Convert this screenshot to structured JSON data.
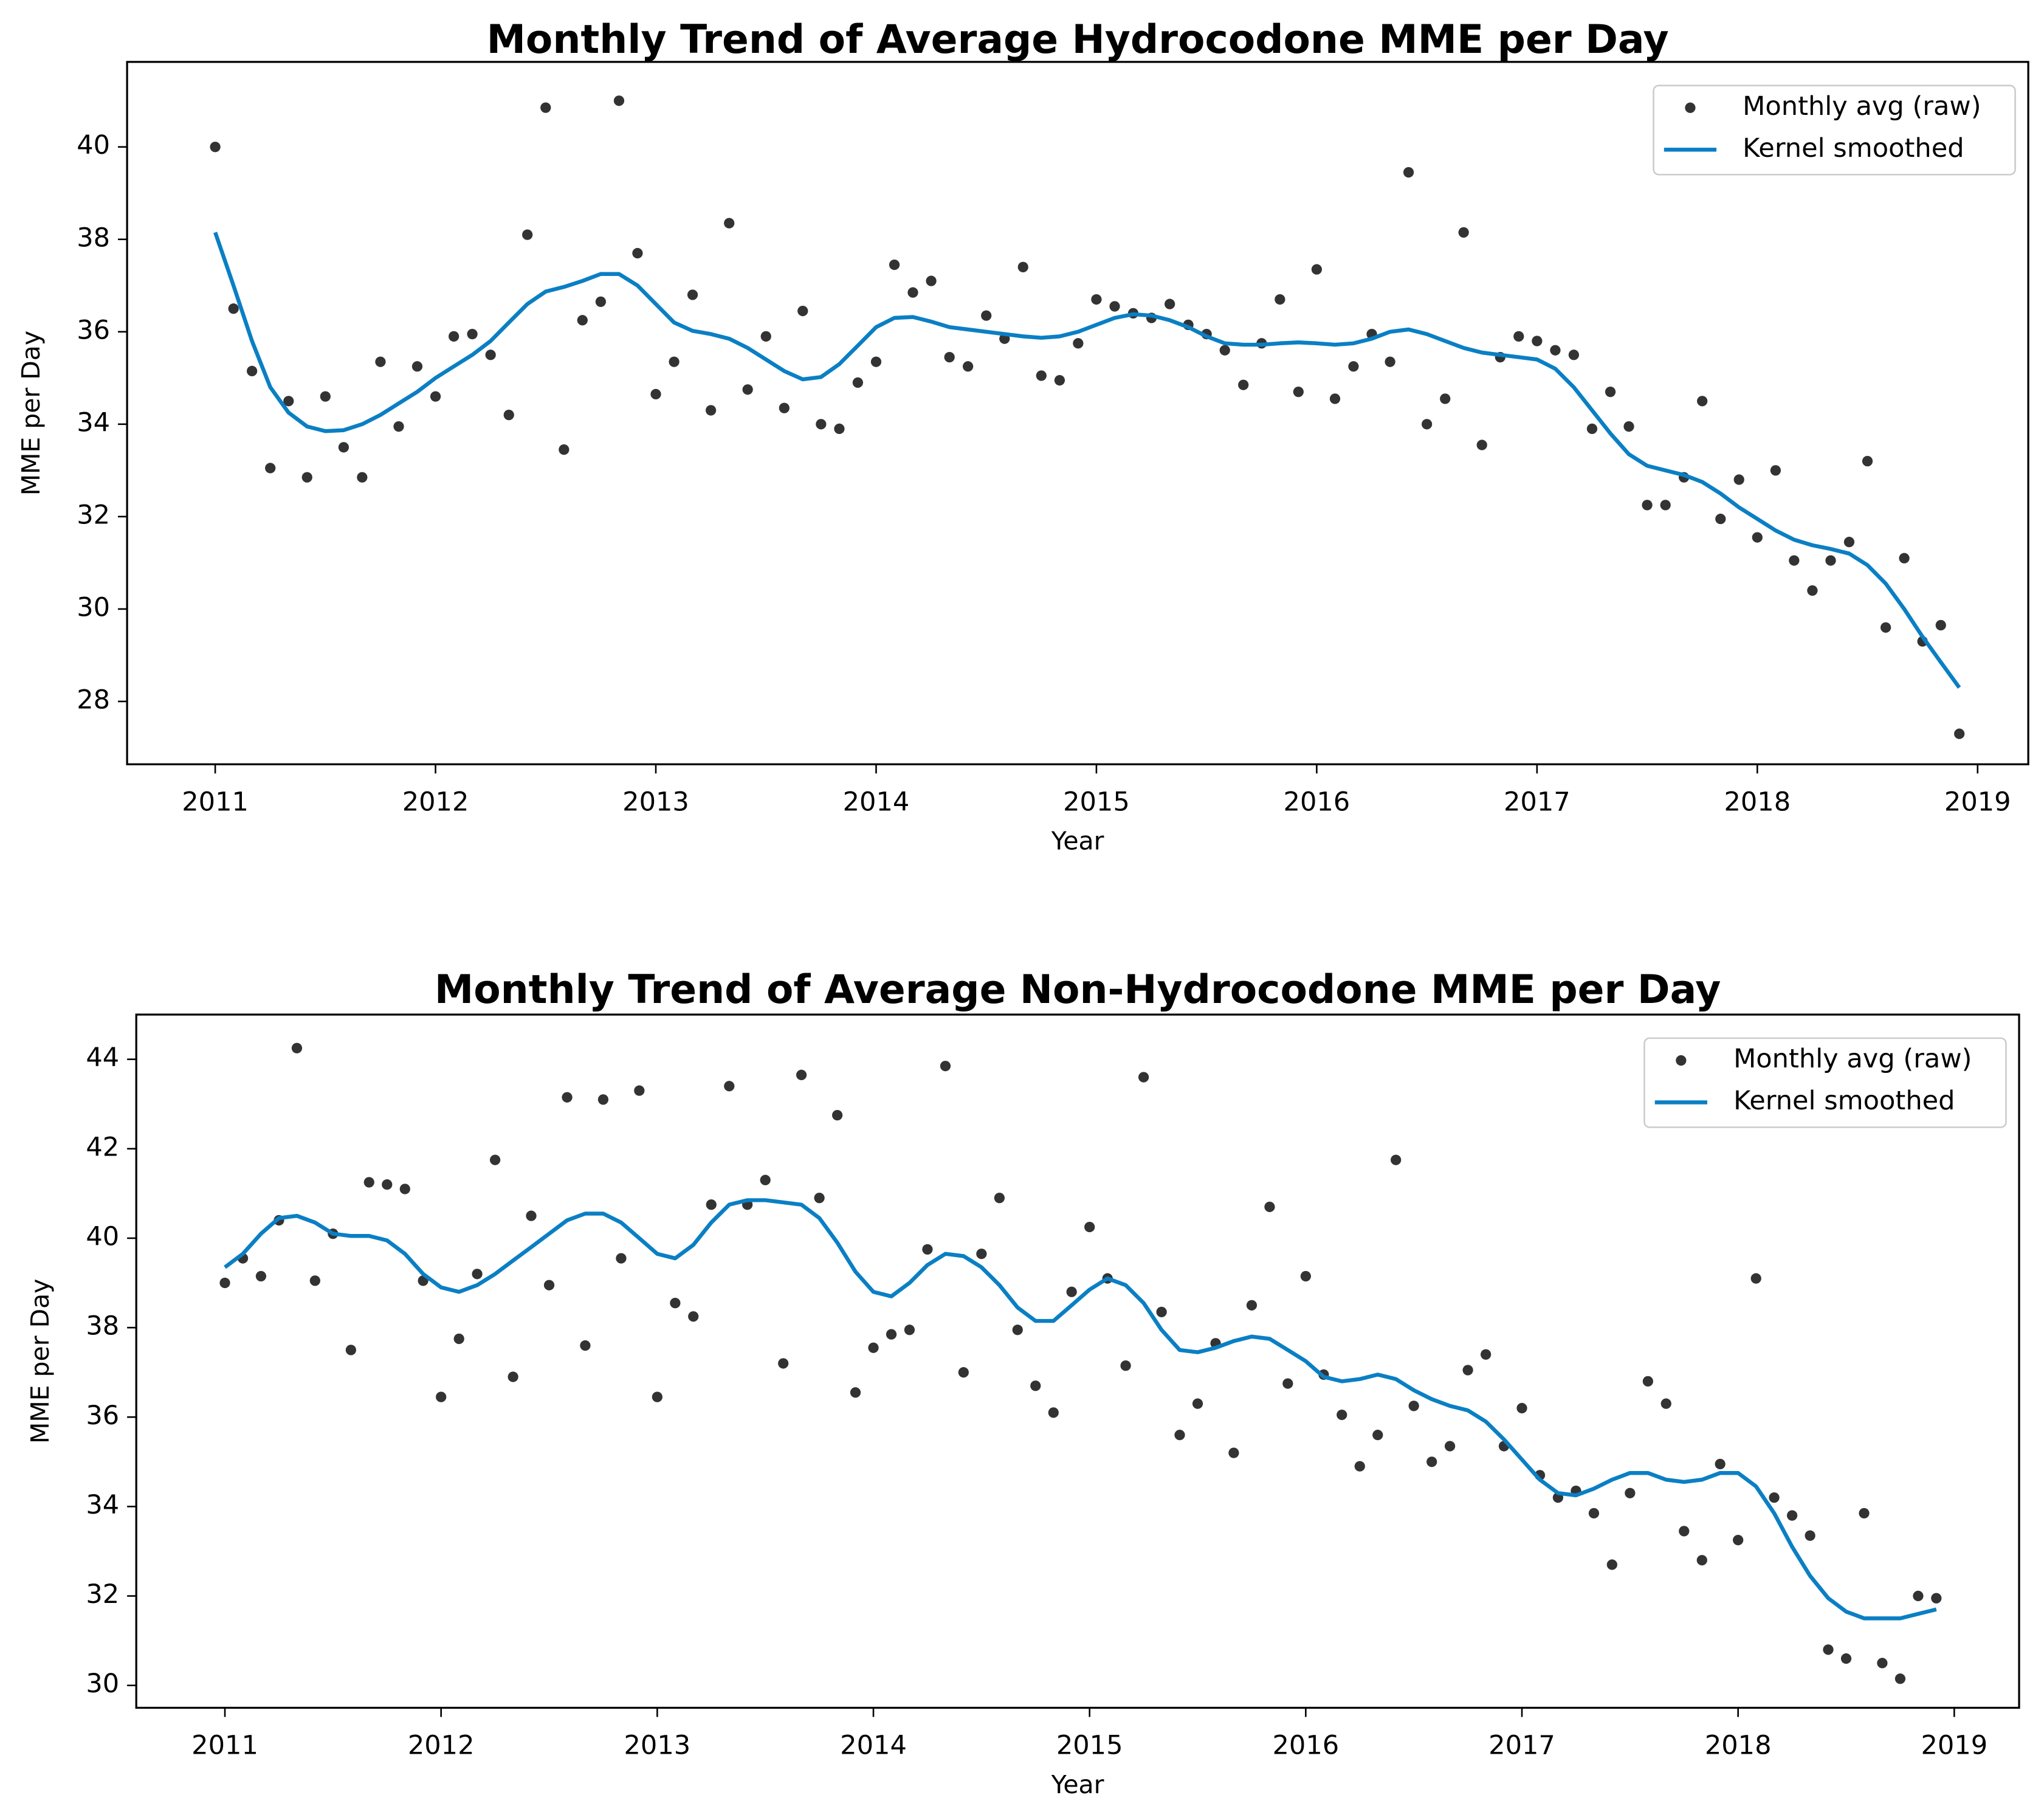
{
  "chart_data": [
    {
      "type": "scatter",
      "title": "Monthly Trend of Average Hydrocodone MME per Day",
      "xlabel": "Year",
      "ylabel": "MME per Day",
      "xlim": [
        2010.6,
        2019.23
      ],
      "ylim": [
        26.64,
        41.84
      ],
      "xticks": [
        2011,
        2012,
        2013,
        2014,
        2015,
        2016,
        2017,
        2018,
        2019
      ],
      "yticks": [
        28,
        30,
        32,
        34,
        36,
        38,
        40
      ],
      "legend": "upper right",
      "x": [
        2011.0,
        2011.083,
        2011.167,
        2011.25,
        2011.333,
        2011.417,
        2011.5,
        2011.583,
        2011.667,
        2011.75,
        2011.833,
        2011.917,
        2012.0,
        2012.083,
        2012.167,
        2012.25,
        2012.333,
        2012.417,
        2012.5,
        2012.583,
        2012.667,
        2012.75,
        2012.833,
        2012.917,
        2013.0,
        2013.083,
        2013.167,
        2013.25,
        2013.333,
        2013.417,
        2013.5,
        2013.583,
        2013.667,
        2013.75,
        2013.833,
        2013.917,
        2014.0,
        2014.083,
        2014.167,
        2014.25,
        2014.333,
        2014.417,
        2014.5,
        2014.583,
        2014.667,
        2014.75,
        2014.833,
        2014.917,
        2015.0,
        2015.083,
        2015.167,
        2015.25,
        2015.333,
        2015.417,
        2015.5,
        2015.583,
        2015.667,
        2015.75,
        2015.833,
        2015.917,
        2016.0,
        2016.083,
        2016.167,
        2016.25,
        2016.333,
        2016.417,
        2016.5,
        2016.583,
        2016.667,
        2016.75,
        2016.833,
        2016.917,
        2017.0,
        2017.083,
        2017.167,
        2017.25,
        2017.333,
        2017.417,
        2017.5,
        2017.583,
        2017.667,
        2017.75,
        2017.833,
        2017.917,
        2018.0,
        2018.083,
        2018.167,
        2018.25,
        2018.333,
        2018.417,
        2018.5,
        2018.583,
        2018.667,
        2018.75,
        2018.833,
        2018.917
      ],
      "series": [
        {
          "name": "Monthly avg (raw)",
          "type": "scatter",
          "color": "#333333",
          "values": [
            40.0,
            36.5,
            35.15,
            33.05,
            34.5,
            32.85,
            34.6,
            33.5,
            32.85,
            35.35,
            33.95,
            35.25,
            34.6,
            35.9,
            35.95,
            35.5,
            34.2,
            38.1,
            40.85,
            33.45,
            36.25,
            36.65,
            41.0,
            37.7,
            34.65,
            35.35,
            36.8,
            34.3,
            38.35,
            34.75,
            35.9,
            34.35,
            36.45,
            34.0,
            33.9,
            34.9,
            35.35,
            37.45,
            36.85,
            37.1,
            35.45,
            35.25,
            36.35,
            35.85,
            37.4,
            35.05,
            34.95,
            35.75,
            36.7,
            36.55,
            36.4,
            36.3,
            36.6,
            36.15,
            35.95,
            35.6,
            34.85,
            35.75,
            36.7,
            34.7,
            37.35,
            34.55,
            35.25,
            35.95,
            35.35,
            39.45,
            34.0,
            34.55,
            38.15,
            33.55,
            35.45,
            35.9,
            35.8,
            35.6,
            35.5,
            33.9,
            34.7,
            33.95,
            32.25,
            32.25,
            32.85,
            34.5,
            31.95,
            32.8,
            31.55,
            33.0,
            31.05,
            30.4,
            31.05,
            31.45,
            33.2,
            29.6,
            31.1,
            29.3,
            29.65,
            27.3
          ]
        },
        {
          "name": "Kernel smoothed",
          "type": "line",
          "color": "#0a7fc4",
          "values": [
            38.15,
            37.0,
            35.8,
            34.8,
            34.25,
            33.95,
            33.85,
            33.87,
            34.0,
            34.2,
            34.45,
            34.7,
            35.0,
            35.25,
            35.5,
            35.8,
            36.2,
            36.6,
            36.87,
            36.97,
            37.1,
            37.25,
            37.25,
            37.0,
            36.6,
            36.2,
            36.02,
            35.95,
            35.85,
            35.65,
            35.4,
            35.15,
            34.97,
            35.02,
            35.3,
            35.7,
            36.1,
            36.3,
            36.32,
            36.22,
            36.1,
            36.05,
            36.0,
            35.95,
            35.9,
            35.87,
            35.9,
            36.0,
            36.15,
            36.3,
            36.38,
            36.35,
            36.25,
            36.1,
            35.9,
            35.75,
            35.72,
            35.72,
            35.75,
            35.77,
            35.75,
            35.72,
            35.75,
            35.85,
            36.0,
            36.05,
            35.95,
            35.8,
            35.65,
            35.55,
            35.5,
            35.45,
            35.4,
            35.2,
            34.8,
            34.3,
            33.8,
            33.35,
            33.1,
            33.0,
            32.9,
            32.75,
            32.5,
            32.2,
            31.95,
            31.7,
            31.5,
            31.38,
            31.3,
            31.2,
            30.95,
            30.55,
            30.0,
            29.4,
            28.85,
            28.3
          ]
        }
      ]
    },
    {
      "type": "scatter",
      "title": "Monthly Trend of Average Non-Hydrocodone MME per Day",
      "xlabel": "Year",
      "ylabel": "MME per Day",
      "xlim": [
        2010.59,
        2019.3
      ],
      "ylim": [
        29.5,
        45.0
      ],
      "xticks": [
        2011,
        2012,
        2013,
        2014,
        2015,
        2016,
        2017,
        2018,
        2019
      ],
      "yticks": [
        30,
        32,
        34,
        36,
        38,
        40,
        42,
        44
      ],
      "legend": "upper right",
      "x": [
        2011.0,
        2011.083,
        2011.167,
        2011.25,
        2011.333,
        2011.417,
        2011.5,
        2011.583,
        2011.667,
        2011.75,
        2011.833,
        2011.917,
        2012.0,
        2012.083,
        2012.167,
        2012.25,
        2012.333,
        2012.417,
        2012.5,
        2012.583,
        2012.667,
        2012.75,
        2012.833,
        2012.917,
        2013.0,
        2013.083,
        2013.167,
        2013.25,
        2013.333,
        2013.417,
        2013.5,
        2013.583,
        2013.667,
        2013.75,
        2013.833,
        2013.917,
        2014.0,
        2014.083,
        2014.167,
        2014.25,
        2014.333,
        2014.417,
        2014.5,
        2014.583,
        2014.667,
        2014.75,
        2014.833,
        2014.917,
        2015.0,
        2015.083,
        2015.167,
        2015.25,
        2015.333,
        2015.417,
        2015.5,
        2015.583,
        2015.667,
        2015.75,
        2015.833,
        2015.917,
        2016.0,
        2016.083,
        2016.167,
        2016.25,
        2016.333,
        2016.417,
        2016.5,
        2016.583,
        2016.667,
        2016.75,
        2016.833,
        2016.917,
        2017.0,
        2017.083,
        2017.167,
        2017.25,
        2017.333,
        2017.417,
        2017.5,
        2017.583,
        2017.667,
        2017.75,
        2017.833,
        2017.917,
        2018.0,
        2018.083,
        2018.167,
        2018.25,
        2018.333,
        2018.417,
        2018.5,
        2018.583,
        2018.667,
        2018.75,
        2018.833,
        2018.917
      ],
      "series": [
        {
          "name": "Monthly avg (raw)",
          "type": "scatter",
          "color": "#333333",
          "values": [
            39.0,
            39.55,
            39.15,
            40.4,
            44.25,
            39.05,
            40.1,
            37.5,
            41.25,
            41.2,
            41.1,
            39.05,
            36.45,
            37.75,
            39.2,
            41.75,
            36.9,
            40.5,
            38.95,
            43.15,
            37.6,
            43.1,
            39.55,
            43.3,
            36.45,
            38.55,
            38.25,
            40.75,
            43.4,
            40.75,
            41.3,
            37.2,
            43.65,
            40.9,
            42.75,
            36.55,
            37.55,
            37.85,
            37.95,
            39.75,
            43.85,
            37.0,
            39.65,
            40.9,
            37.95,
            36.7,
            36.1,
            38.8,
            40.25,
            39.1,
            37.15,
            43.6,
            38.35,
            35.6,
            36.3,
            37.65,
            35.2,
            38.5,
            40.7,
            36.75,
            39.15,
            36.95,
            36.05,
            34.9,
            35.6,
            41.75,
            36.25,
            35.0,
            35.35,
            37.05,
            37.4,
            35.35,
            36.2,
            34.7,
            34.2,
            34.35,
            33.85,
            32.7,
            34.3,
            36.8,
            36.3,
            33.45,
            32.8,
            34.95,
            33.25,
            39.1,
            34.2,
            33.8,
            33.35,
            30.8,
            30.6,
            33.85,
            30.5,
            30.15,
            32.0,
            31.95
          ]
        },
        {
          "name": "Kernel smoothed",
          "type": "line",
          "color": "#0a7fc4",
          "values": [
            39.35,
            39.65,
            40.1,
            40.45,
            40.5,
            40.35,
            40.1,
            40.05,
            40.05,
            39.95,
            39.65,
            39.2,
            38.9,
            38.8,
            38.95,
            39.2,
            39.5,
            39.8,
            40.1,
            40.4,
            40.55,
            40.55,
            40.35,
            40.0,
            39.65,
            39.55,
            39.85,
            40.35,
            40.75,
            40.85,
            40.85,
            40.8,
            40.75,
            40.45,
            39.9,
            39.25,
            38.8,
            38.7,
            39.0,
            39.4,
            39.65,
            39.6,
            39.35,
            38.95,
            38.45,
            38.15,
            38.15,
            38.5,
            38.85,
            39.1,
            38.95,
            38.55,
            37.95,
            37.5,
            37.45,
            37.55,
            37.7,
            37.8,
            37.75,
            37.5,
            37.25,
            36.9,
            36.8,
            36.85,
            36.95,
            36.85,
            36.6,
            36.4,
            36.25,
            36.15,
            35.9,
            35.5,
            35.05,
            34.6,
            34.3,
            34.25,
            34.4,
            34.6,
            34.75,
            34.75,
            34.6,
            34.55,
            34.6,
            34.75,
            34.75,
            34.45,
            33.85,
            33.1,
            32.45,
            31.95,
            31.65,
            31.5,
            31.5,
            31.5,
            31.6,
            31.7
          ]
        }
      ]
    }
  ]
}
